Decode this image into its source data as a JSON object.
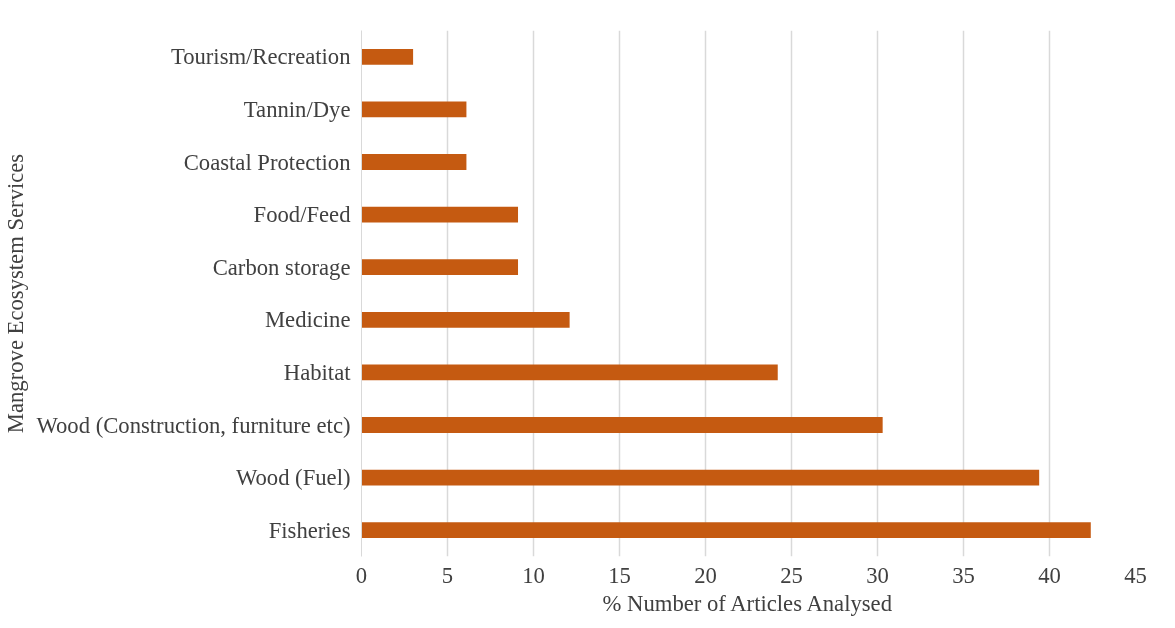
{
  "chart_data": {
    "type": "bar",
    "orientation": "horizontal",
    "xlabel": "% Number of Articles Analysed",
    "ylabel": "Mangrove Ecosystem Services",
    "categories": [
      "Tourism/Recreation",
      "Tannin/Dye",
      "Coastal Protection",
      "Food/Feed",
      "Carbon storage",
      "Medicine",
      "Habitat",
      "Wood (Construction, furniture etc)",
      "Wood (Fuel)",
      "Fisheries"
    ],
    "values": [
      3.0,
      6.1,
      6.1,
      9.1,
      9.1,
      12.1,
      24.2,
      30.3,
      39.4,
      42.4
    ],
    "color": "#c55a11",
    "xlim": [
      0,
      45
    ],
    "xticks": [
      0,
      5,
      10,
      15,
      20,
      25,
      30,
      35,
      40,
      45
    ],
    "grid": "x"
  }
}
